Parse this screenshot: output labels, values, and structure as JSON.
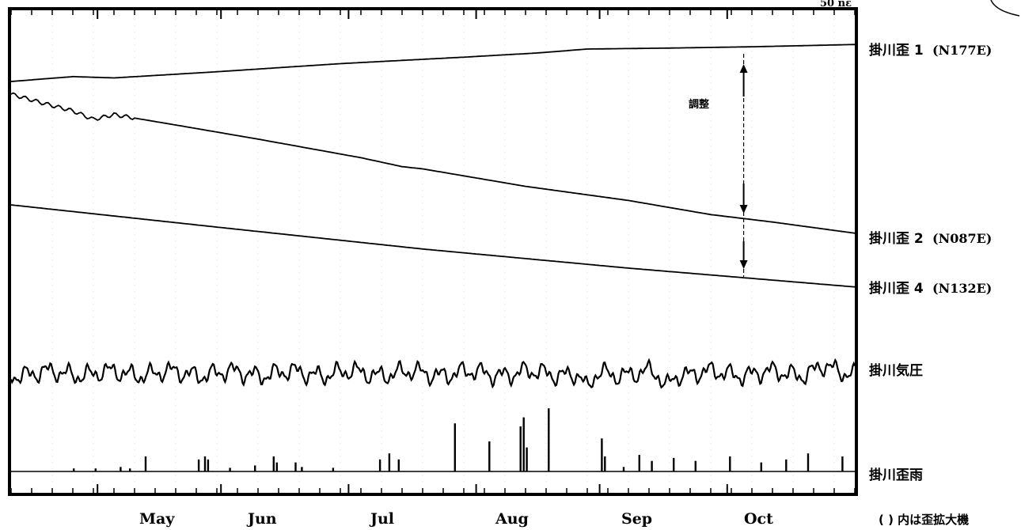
{
  "chart_data": {
    "type": "line",
    "title": "",
    "x_axis": {
      "labels": [
        "May",
        "Jun",
        "Jul",
        "Aug",
        "Sep",
        "Oct"
      ],
      "range": [
        "04-10",
        "10-31"
      ]
    },
    "corner_text": "50 nε",
    "adjustment_note": "調整",
    "adjustment_date": "10-05",
    "footnote": "( ) 内は歪拡大機",
    "series": [
      {
        "name": "掛川歪 1",
        "orientation": "(N177E)",
        "kind": "strain",
        "values": [
          [
            0,
            0
          ],
          [
            15,
            1.5
          ],
          [
            25,
            1.1
          ],
          [
            50,
            3.0
          ],
          [
            80,
            5.5
          ],
          [
            110,
            7.5
          ],
          [
            128,
            8.8
          ],
          [
            140,
            10.0
          ],
          [
            160,
            10.3
          ],
          [
            180,
            10.7
          ],
          [
            205,
            11.4
          ]
        ]
      },
      {
        "name": "掛川歪 2",
        "orientation": "(N087E)",
        "kind": "strain",
        "values": [
          [
            0,
            0
          ],
          [
            8,
            -2.5
          ],
          [
            15,
            -4.5
          ],
          [
            20,
            -6.8
          ],
          [
            25,
            -5.5
          ],
          [
            40,
            -8.3
          ],
          [
            60,
            -12.1
          ],
          [
            85,
            -17.1
          ],
          [
            95,
            -19.5
          ],
          [
            100,
            -20.1
          ],
          [
            125,
            -24.8
          ],
          [
            150,
            -28.6
          ],
          [
            170,
            -32.4
          ],
          [
            185,
            -34.4
          ],
          [
            205,
            -37.4
          ]
        ]
      },
      {
        "name": "掛川歪 4",
        "orientation": "(N132E)",
        "kind": "strain",
        "values": [
          [
            0,
            0
          ],
          [
            50,
            -7.2
          ],
          [
            100,
            -14.3
          ],
          [
            150,
            -20.5
          ],
          [
            205,
            -26.6
          ]
        ]
      },
      {
        "name": "掛川気圧",
        "orientation": "",
        "kind": "pressure"
      },
      {
        "name": "掛川歪雨",
        "orientation": "",
        "kind": "rain",
        "events": [
          [
            20,
            0.1
          ],
          [
            27,
            0.1
          ],
          [
            35,
            0.15
          ],
          [
            38,
            0.1
          ],
          [
            43,
            0.5
          ],
          [
            60,
            0.4
          ],
          [
            62,
            0.5
          ],
          [
            63,
            0.4
          ],
          [
            70,
            0.12
          ],
          [
            78,
            0.2
          ],
          [
            84,
            0.5
          ],
          [
            85,
            0.3
          ],
          [
            91,
            0.3
          ],
          [
            93,
            0.15
          ],
          [
            103,
            0.12
          ],
          [
            118,
            0.4
          ],
          [
            121,
            0.6
          ],
          [
            124,
            0.4
          ],
          [
            142,
            1.6
          ],
          [
            153,
            1.0
          ],
          [
            163,
            1.5
          ],
          [
            164,
            1.8
          ],
          [
            165,
            0.8
          ],
          [
            172,
            2.1
          ],
          [
            189,
            1.1
          ],
          [
            190,
            0.5
          ],
          [
            196,
            0.15
          ],
          [
            201,
            0.55
          ],
          [
            205,
            0.35
          ],
          [
            212,
            0.45
          ],
          [
            219,
            0.35
          ],
          [
            230,
            0.5
          ],
          [
            240,
            0.3
          ],
          [
            248,
            0.4
          ],
          [
            255,
            0.6
          ],
          [
            266,
            0.5
          ]
        ]
      }
    ]
  }
}
